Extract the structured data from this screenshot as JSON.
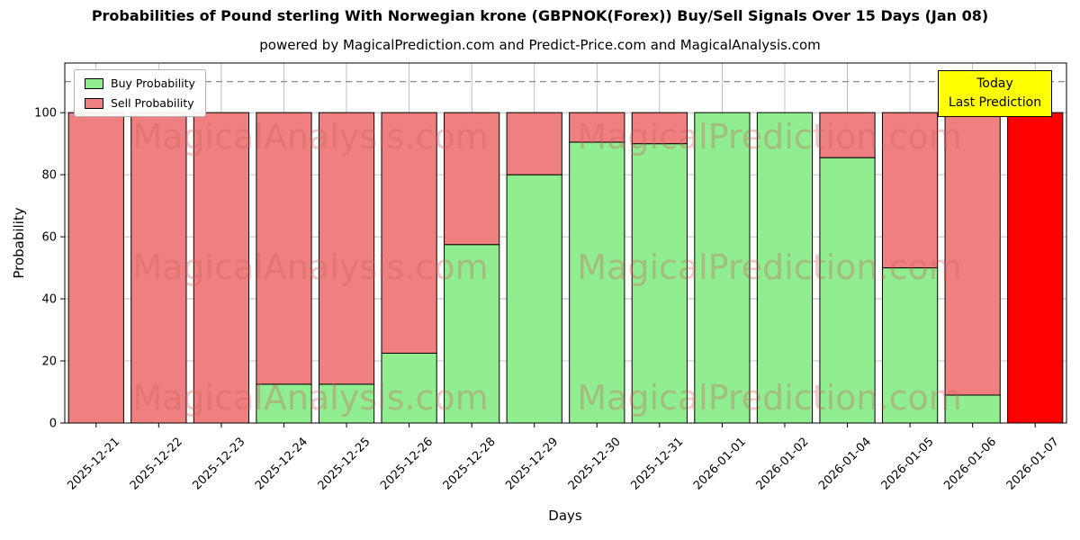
{
  "chart_data": {
    "type": "bar",
    "stacked": true,
    "title": "Probabilities of Pound sterling With Norwegian krone (GBPNOK(Forex)) Buy/Sell Signals Over 15 Days (Jan 08)",
    "subtitle": "powered by MagicalPrediction.com and Predict-Price.com and MagicalAnalysis.com",
    "xlabel": "Days",
    "ylabel": "Probability",
    "categories": [
      "2025-12-21",
      "2025-12-22",
      "2025-12-23",
      "2025-12-24",
      "2025-12-25",
      "2025-12-26",
      "2025-12-28",
      "2025-12-29",
      "2025-12-30",
      "2025-12-31",
      "2026-01-01",
      "2026-01-02",
      "2026-01-04",
      "2026-01-05",
      "2026-01-06",
      "2026-01-07"
    ],
    "series": [
      {
        "name": "Buy Probability",
        "color": "#90ee90",
        "values": [
          0,
          0,
          0,
          12.5,
          12.5,
          22.5,
          57.5,
          80,
          90.5,
          90,
          100,
          100,
          85.5,
          50,
          9,
          0
        ]
      },
      {
        "name": "Sell Probability",
        "color": "#f08080",
        "values": [
          100,
          100,
          100,
          87.5,
          87.5,
          77.5,
          42.5,
          20,
          9.5,
          10,
          0,
          0,
          14.5,
          50,
          91,
          100
        ]
      }
    ],
    "today_bar": {
      "index": 15,
      "color": "#ff0000"
    },
    "yticks": [
      0,
      20,
      40,
      60,
      80,
      100
    ],
    "ylim": [
      0,
      116
    ],
    "threshold_line": {
      "y": 110,
      "style": "dashed",
      "color": "#7f7f7f"
    },
    "grid": true,
    "grid_color": "#b0b0b0",
    "legend_position": "upper-left"
  },
  "legend": {
    "buy_label": "Buy Probability",
    "sell_label": "Sell Probability"
  },
  "annotation": {
    "line1": "Today",
    "line2": "Last Prediction",
    "bg_color": "#ffff00"
  },
  "watermarks": {
    "left": "MagicalAnalysis.com",
    "right": "MagicalPrediction.com"
  }
}
